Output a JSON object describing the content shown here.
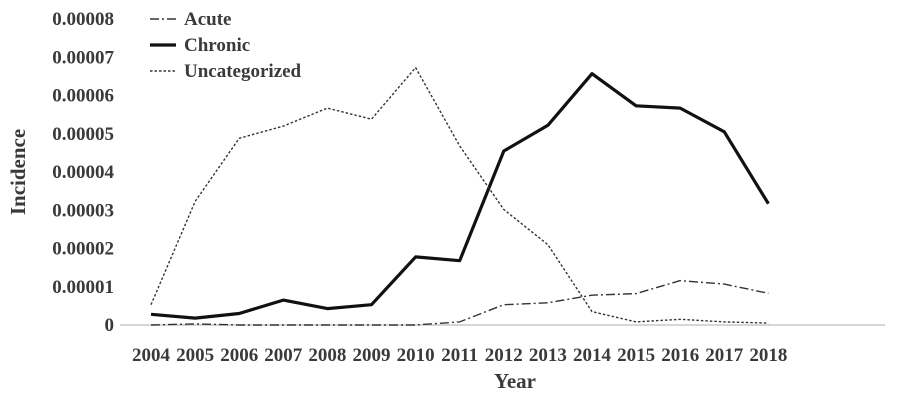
{
  "chart_data": {
    "type": "line",
    "title": "",
    "xlabel": "Year",
    "ylabel": "Incidence",
    "x": [
      "2004",
      "2005",
      "2006",
      "2007",
      "2008",
      "2009",
      "2010",
      "2011",
      "2012",
      "2013",
      "2014",
      "2015",
      "2016",
      "2017",
      "2018"
    ],
    "y_ticks": [
      "0",
      "0.00001",
      "0.00002",
      "0.00003",
      "0.00004",
      "0.00005",
      "0.00006",
      "0.00007",
      "0.00008"
    ],
    "ylim": [
      0,
      8e-05
    ],
    "grid": false,
    "legend_position": "top-left",
    "series": [
      {
        "name": "Acute",
        "style": "dash-dot",
        "color": "#333333",
        "values": [
          0,
          3e-07,
          0,
          0,
          0,
          0,
          0,
          8e-07,
          5.3e-06,
          5.8e-06,
          7.8e-06,
          8.2e-06,
          1.16e-05,
          1.07e-05,
          8.3e-06
        ]
      },
      {
        "name": "Chronic",
        "style": "solid",
        "color": "#111111",
        "values": [
          2.8e-06,
          1.8e-06,
          3e-06,
          6.5e-06,
          4.3e-06,
          5.3e-06,
          1.78e-05,
          1.68e-05,
          4.55e-05,
          5.22e-05,
          6.57e-05,
          5.73e-05,
          5.67e-05,
          5.05e-05,
          3.17e-05
        ]
      },
      {
        "name": "Uncategorized",
        "style": "dotted",
        "color": "#333333",
        "values": [
          5.3e-06,
          3.23e-05,
          4.88e-05,
          5.2e-05,
          5.67e-05,
          5.38e-05,
          6.73e-05,
          4.68e-05,
          3.02e-05,
          2.1e-05,
          3.5e-06,
          8e-07,
          1.5e-06,
          8e-07,
          5e-07
        ]
      }
    ]
  }
}
